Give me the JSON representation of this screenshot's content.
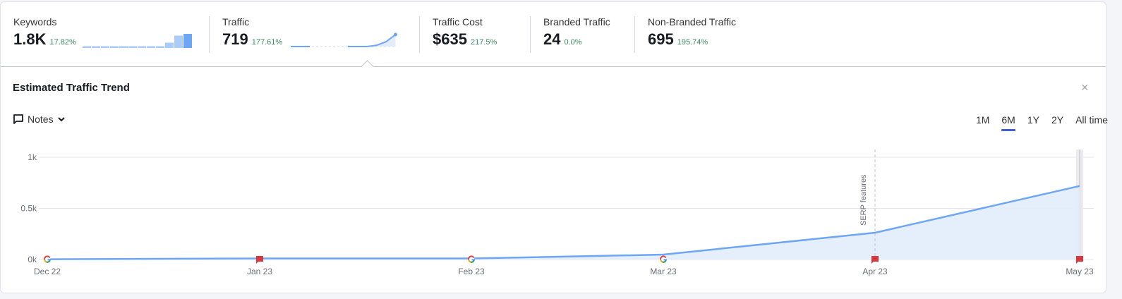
{
  "metrics": [
    {
      "label": "Keywords",
      "value": "1.8K",
      "delta": "17.82%",
      "spark": [
        1,
        1,
        1,
        1,
        1,
        1,
        1,
        1,
        1,
        3,
        7,
        8
      ],
      "spark_type": "bar"
    },
    {
      "label": "Traffic",
      "value": "719",
      "delta": "177.61%",
      "spark": [
        0,
        0,
        0,
        null,
        null,
        null,
        0,
        0,
        0,
        3,
        12,
        30
      ],
      "spark_type": "line"
    },
    {
      "label": "Traffic Cost",
      "value": "$635",
      "delta": "217.5%"
    },
    {
      "label": "Branded Traffic",
      "value": "24",
      "delta": "0.0%"
    },
    {
      "label": "Non-Branded Traffic",
      "value": "695",
      "delta": "195.74%"
    }
  ],
  "panel": {
    "title": "Estimated Traffic Trend",
    "close": "×",
    "notes_label": "Notes"
  },
  "ranges": [
    {
      "label": "1M"
    },
    {
      "label": "6M",
      "active": true
    },
    {
      "label": "1Y"
    },
    {
      "label": "2Y"
    },
    {
      "label": "All time"
    }
  ],
  "colors": {
    "line": "#6ea6f6",
    "fill": "#e2edfc",
    "flag": "#d9363e",
    "delta": "#3d8a5f",
    "active": "#3e5fd8"
  },
  "chart_data": {
    "type": "area",
    "categories": [
      "Dec 22",
      "Jan 23",
      "Feb 23",
      "Mar 23",
      "Apr 23",
      "May 23"
    ],
    "values": [
      3,
      10,
      10,
      48,
      262,
      719
    ],
    "yticks": [
      {
        "v": 0,
        "label": "0k"
      },
      {
        "v": 500,
        "label": "0.5k"
      },
      {
        "v": 1000,
        "label": "1k"
      }
    ],
    "ylim": [
      0,
      1000
    ],
    "markers": [
      "google",
      "flag",
      "google",
      "google",
      "flag",
      "flag"
    ],
    "annotation": {
      "index": 4,
      "label": "SERP features"
    }
  }
}
